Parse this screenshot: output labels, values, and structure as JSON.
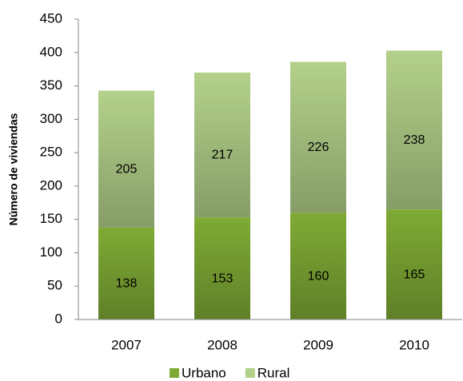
{
  "chart_data": {
    "type": "stacked_bar",
    "y_label": "Número de viviendas",
    "categories": [
      "2007",
      "2008",
      "2009",
      "2010"
    ],
    "series": [
      {
        "name": "Urbano",
        "color": "#7faa35",
        "values": [
          138,
          153,
          160,
          165
        ]
      },
      {
        "name": "Rural",
        "color": "#b3d18a",
        "values": [
          205,
          217,
          226,
          238
        ]
      }
    ],
    "ylim": [
      0,
      450
    ],
    "yticks": [
      0,
      50,
      100,
      150,
      200,
      250,
      300,
      350,
      400,
      450
    ],
    "legend": "bottom"
  }
}
